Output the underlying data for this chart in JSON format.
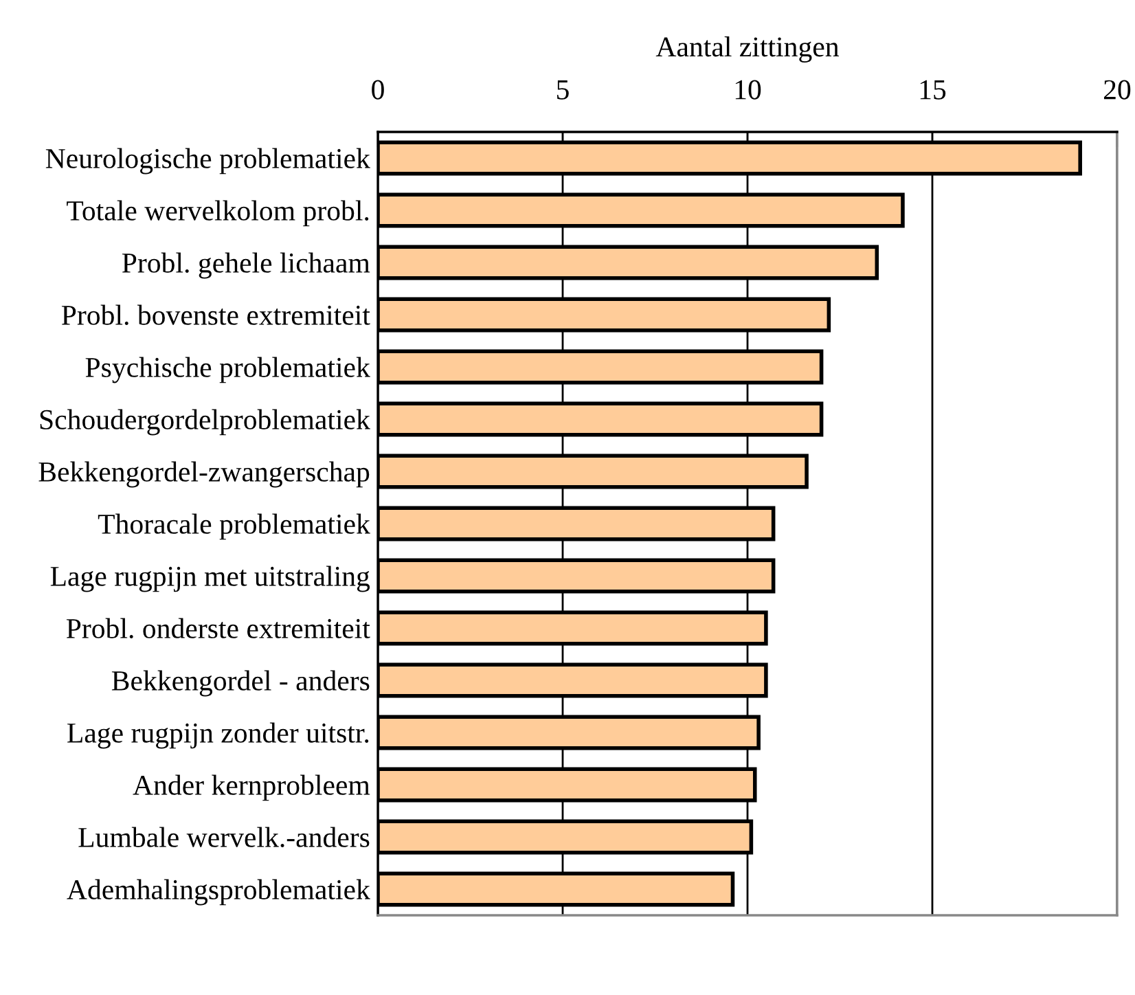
{
  "chart_data": {
    "type": "bar",
    "orientation": "horizontal",
    "xlabel": "Aantal zittingen",
    "categories": [
      "Neurologische problematiek",
      "Totale wervelkolom probl.",
      "Probl. gehele lichaam",
      "Probl. bovenste extremiteit",
      "Psychische problematiek",
      "Schoudergordelproblematiek",
      "Bekkengordel-zwangerschap",
      "Thoracale problematiek",
      "Lage rugpijn met uitstraling",
      "Probl. onderste extremiteit",
      "Bekkengordel - anders",
      "Lage rugpijn zonder uitstr.",
      "Ander kernprobleem",
      "Lumbale wervelk.-anders",
      "Ademhalingsproblematiek"
    ],
    "values": [
      19.0,
      14.2,
      13.5,
      12.2,
      12.0,
      12.0,
      11.6,
      10.7,
      10.7,
      10.5,
      10.5,
      10.3,
      10.2,
      10.1,
      9.6
    ],
    "color": "#ffcc99",
    "xlim": [
      0,
      20
    ],
    "xticks": [
      0,
      5,
      10,
      15,
      20
    ],
    "grid": "x",
    "legend": false
  }
}
